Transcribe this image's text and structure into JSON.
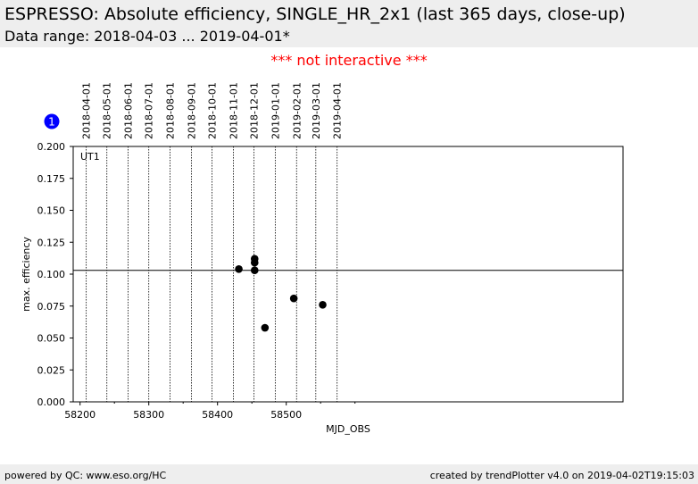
{
  "header": {
    "title": "ESPRESSO: Absolute efficiency, SINGLE_HR_2x1 (last 365 days, close-up)",
    "subtitle": "Data range: 2018-04-03 ... 2019-04-01*"
  },
  "notice": "*** not interactive ***",
  "footer": {
    "left": "powered by QC: www.eso.org/HC",
    "right": "created by trendPlotter v4.0 on 2019-04-02T19:15:03"
  },
  "chart_data": {
    "type": "scatter",
    "panel_label": "UT1",
    "panel_badge": "1",
    "xlabel": "MJD_OBS",
    "ylabel": "max. efficiency",
    "xlim": [
      58190,
      58990
    ],
    "ylim": [
      0.0,
      0.2
    ],
    "x_ticks": [
      58200,
      58300,
      58400,
      58500
    ],
    "x_minor_ticks": [
      58250,
      58350,
      58450,
      58550,
      58600
    ],
    "y_ticks": [
      "0.000",
      "0.025",
      "0.050",
      "0.075",
      "0.100",
      "0.125",
      "0.150",
      "0.175",
      "0.200"
    ],
    "reference_line": 0.103,
    "date_markers": [
      {
        "label": "2018-04-01",
        "mjd": 58209
      },
      {
        "label": "2018-05-01",
        "mjd": 58239
      },
      {
        "label": "2018-06-01",
        "mjd": 58270
      },
      {
        "label": "2018-07-01",
        "mjd": 58300
      },
      {
        "label": "2018-08-01",
        "mjd": 58331
      },
      {
        "label": "2018-09-01",
        "mjd": 58362
      },
      {
        "label": "2018-10-01",
        "mjd": 58392
      },
      {
        "label": "2018-11-01",
        "mjd": 58423
      },
      {
        "label": "2018-12-01",
        "mjd": 58453
      },
      {
        "label": "2019-01-01",
        "mjd": 58484
      },
      {
        "label": "2019-02-01",
        "mjd": 58515
      },
      {
        "label": "2019-03-01",
        "mjd": 58543
      },
      {
        "label": "2019-04-01",
        "mjd": 58574
      }
    ],
    "points": [
      {
        "x": 58431,
        "y": 0.104
      },
      {
        "x": 58454,
        "y": 0.112
      },
      {
        "x": 58454,
        "y": 0.109
      },
      {
        "x": 58454,
        "y": 0.103
      },
      {
        "x": 58469,
        "y": 0.058
      },
      {
        "x": 58511,
        "y": 0.081
      },
      {
        "x": 58553,
        "y": 0.076
      }
    ]
  }
}
